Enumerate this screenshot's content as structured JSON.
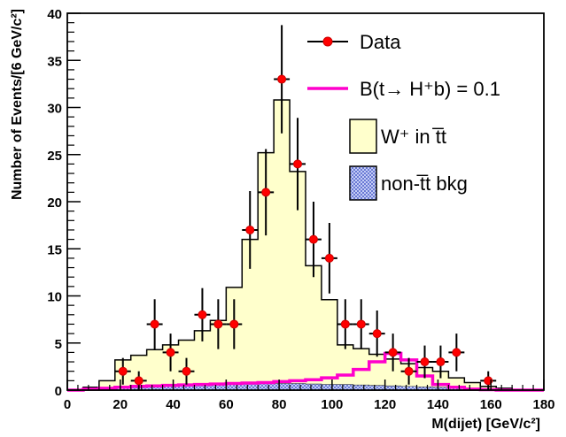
{
  "chart_data": {
    "type": "histogram",
    "xlabel": "M(dijet) [GeV/c²]",
    "ylabel": "Number of Events/[6 GeV/c²]",
    "xlim": [
      0,
      180
    ],
    "ylim": [
      0,
      40
    ],
    "x_ticks": [
      0,
      20,
      40,
      60,
      80,
      100,
      120,
      140,
      160,
      180
    ],
    "y_ticks": [
      0,
      5,
      10,
      15,
      20,
      25,
      30,
      35,
      40
    ],
    "bin_edges": [
      0,
      6,
      12,
      18,
      24,
      30,
      36,
      42,
      48,
      54,
      60,
      66,
      72,
      78,
      84,
      90,
      96,
      102,
      108,
      114,
      120,
      126,
      132,
      138,
      144,
      150,
      156,
      162,
      168,
      174,
      180
    ],
    "series": [
      {
        "name": "W⁺ in t̅t",
        "style": "filled-histogram",
        "color": "#ffffcc",
        "values": [
          0,
          0.3,
          1.0,
          3.2,
          3.7,
          4.3,
          4.8,
          5.3,
          6.3,
          7.4,
          10.9,
          16.0,
          25.2,
          30.8,
          23.2,
          13.2,
          9.6,
          4.8,
          4.4,
          3.8,
          3.3,
          2.8,
          2.4,
          2.0,
          1.3,
          0.8,
          0.4,
          0.2,
          0,
          0
        ]
      },
      {
        "name": "non-t̅t bkg",
        "style": "hatched-histogram",
        "color": "#8899dd",
        "values": [
          0,
          0.05,
          0.2,
          0.3,
          0.4,
          0.4,
          0.45,
          0.5,
          0.55,
          0.6,
          0.6,
          0.65,
          0.7,
          0.7,
          0.7,
          0.65,
          0.6,
          0.6,
          0.55,
          0.5,
          0.45,
          0.4,
          0.35,
          0.3,
          0.25,
          0.2,
          0.15,
          0.1,
          0.05,
          0
        ]
      },
      {
        "name": "B(t→ H⁺b) = 0.1",
        "style": "line-histogram",
        "color": "#ff00cc",
        "values": [
          0,
          0.1,
          0.2,
          0.3,
          0.4,
          0.45,
          0.5,
          0.55,
          0.6,
          0.65,
          0.7,
          0.75,
          0.8,
          0.9,
          1.0,
          1.1,
          1.3,
          1.6,
          2.2,
          3.0,
          3.9,
          3.2,
          1.5,
          0.6,
          0.3,
          0.1,
          0.05,
          0,
          0,
          0
        ]
      },
      {
        "name": "Data",
        "style": "points-with-errors",
        "color": "#ff0000",
        "x": [
          21,
          27,
          33,
          39,
          45,
          51,
          57,
          63,
          69,
          75,
          81,
          87,
          93,
          99,
          105,
          111,
          117,
          123,
          129,
          135,
          141,
          147,
          159
        ],
        "y": [
          2,
          1,
          7,
          4,
          2,
          8,
          7,
          7,
          17,
          21,
          33,
          24,
          16,
          14,
          7,
          7,
          6,
          4,
          2,
          3,
          3,
          4,
          1
        ]
      }
    ],
    "legend": {
      "placement": "top-right",
      "entries": [
        {
          "label": "Data",
          "symbol": "points-with-errors"
        },
        {
          "label": "B(t→ H⁺b) = 0.1",
          "symbol": "line"
        },
        {
          "label": "W⁺ in t̅t",
          "symbol": "filled-box"
        },
        {
          "label": "non-t̅t bkg",
          "symbol": "hatched-box"
        }
      ]
    },
    "grid": false
  }
}
